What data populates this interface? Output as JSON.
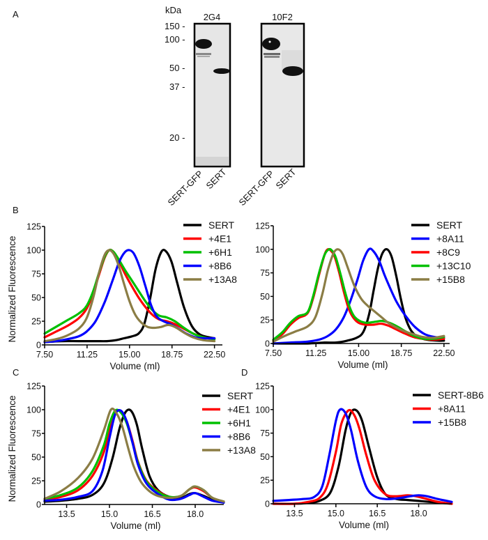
{
  "figure": {
    "panel_letters": [
      "A",
      "B",
      "C",
      "D"
    ]
  },
  "blot": {
    "unit_label": "kDa",
    "markers": [
      "150 -",
      "100 -",
      "50 -",
      "37 -",
      "20 -"
    ],
    "marker_values": [
      150,
      100,
      50,
      37,
      20
    ],
    "blots": [
      {
        "title": "2G4",
        "lanes": [
          "SERT-GFP",
          "SERT"
        ]
      },
      {
        "title": "10F2",
        "lanes": [
          "SERT-GFP",
          "SERT"
        ]
      }
    ]
  },
  "chart_data": [
    {
      "id": "B-left",
      "type": "line",
      "title": "",
      "xlabel": "Volume (ml)",
      "ylabel": "Normalized Fluorescence",
      "xlim": [
        7.5,
        23.2
      ],
      "ylim": [
        0,
        125
      ],
      "xticks": [
        7.5,
        11.25,
        15.0,
        18.75,
        22.5
      ],
      "xtick_labels": [
        "7.50",
        "11.25",
        "15.00",
        "18.75",
        "22.50"
      ],
      "yticks": [
        0,
        25,
        50,
        75,
        100,
        125
      ],
      "ytick_labels": [
        "0",
        "25",
        "50",
        "75",
        "100",
        "125"
      ],
      "legend_position": "top-right",
      "grid": false,
      "series": [
        {
          "name": "SERT",
          "color": "#000000",
          "x": [
            7.5,
            9,
            10.5,
            12,
            13,
            13.8,
            14.5,
            15.2,
            15.8,
            16.3,
            16.8,
            17.3,
            17.8,
            18.2,
            18.7,
            19.2,
            19.8,
            20.5,
            21.2,
            22,
            22.5
          ],
          "y": [
            3,
            4,
            4,
            4,
            4,
            5,
            7,
            9,
            12,
            22,
            48,
            80,
            98,
            99,
            88,
            66,
            40,
            20,
            11,
            8,
            7
          ]
        },
        {
          "name": "+4E1",
          "color": "#ff0000",
          "x": [
            7.5,
            8.5,
            9.5,
            10.5,
            11.2,
            11.8,
            12.3,
            12.8,
            13.2,
            13.6,
            14.0,
            14.6,
            15.2,
            15.8,
            16.4,
            17.0,
            17.6,
            18.3,
            19.0,
            19.8,
            20.6,
            21.5,
            22.5
          ],
          "y": [
            8,
            14,
            20,
            28,
            38,
            55,
            74,
            92,
            100,
            98,
            90,
            75,
            62,
            50,
            40,
            32,
            27,
            25,
            22,
            17,
            12,
            8,
            6
          ]
        },
        {
          "name": "+6H1",
          "color": "#00c000",
          "x": [
            7.5,
            8.5,
            9.5,
            10.5,
            11.2,
            11.8,
            12.3,
            12.8,
            13.2,
            13.6,
            14.0,
            14.6,
            15.2,
            15.8,
            16.4,
            17.0,
            17.6,
            18.3,
            19.0,
            19.8,
            20.6,
            21.5,
            22.5
          ],
          "y": [
            12,
            19,
            26,
            33,
            41,
            57,
            76,
            93,
            100,
            98,
            91,
            79,
            68,
            57,
            46,
            37,
            31,
            29,
            25,
            18,
            12,
            8,
            6
          ]
        },
        {
          "name": "+8B6",
          "color": "#0000ff",
          "x": [
            7.5,
            8.5,
            9.5,
            10.5,
            11.2,
            12.0,
            12.8,
            13.5,
            14.1,
            14.6,
            15.0,
            15.4,
            15.9,
            16.4,
            16.9,
            17.4,
            18.0,
            18.6,
            19.2,
            20.0,
            20.8,
            21.6,
            22.5
          ],
          "y": [
            3,
            4,
            6,
            9,
            14,
            25,
            45,
            68,
            88,
            98,
            100,
            96,
            82,
            62,
            42,
            30,
            25,
            22,
            18,
            12,
            8,
            7,
            7
          ]
        },
        {
          "name": "+13A8",
          "color": "#8b7d45",
          "x": [
            7.5,
            8.5,
            9.5,
            10.5,
            11.2,
            11.8,
            12.3,
            12.8,
            13.2,
            13.6,
            14.0,
            14.5,
            15.0,
            15.5,
            16.0,
            16.6,
            17.2,
            17.8,
            18.4,
            19.0,
            19.8,
            20.6,
            21.5,
            22.5
          ],
          "y": [
            4,
            6,
            10,
            17,
            28,
            50,
            76,
            95,
            100,
            96,
            85,
            65,
            46,
            32,
            24,
            19,
            18,
            19,
            21,
            19,
            13,
            8,
            5,
            4
          ]
        }
      ]
    },
    {
      "id": "B-right",
      "type": "line",
      "title": "",
      "xlabel": "Volume (ml)",
      "ylabel": "",
      "xlim": [
        7.5,
        23.0
      ],
      "ylim": [
        0,
        125
      ],
      "xticks": [
        7.5,
        11.25,
        15.0,
        18.75,
        22.5
      ],
      "xtick_labels": [
        "7.50",
        "11.25",
        "15.00",
        "18.75",
        "22.50"
      ],
      "yticks": [
        0,
        25,
        50,
        75,
        100,
        125
      ],
      "ytick_labels": [
        "0",
        "25",
        "50",
        "75",
        "100",
        "125"
      ],
      "legend_position": "top-right",
      "grid": false,
      "series": [
        {
          "name": "SERT",
          "color": "#000000",
          "x": [
            7.5,
            9,
            10.5,
            12,
            13,
            14,
            14.8,
            15.4,
            15.9,
            16.3,
            16.7,
            17.1,
            17.5,
            17.9,
            18.3,
            18.7,
            19.1,
            19.6,
            20.2,
            21,
            22,
            22.5
          ],
          "y": [
            0,
            0,
            0,
            1,
            1,
            3,
            6,
            12,
            30,
            55,
            80,
            96,
            100,
            92,
            72,
            48,
            28,
            14,
            7,
            4,
            3,
            3
          ]
        },
        {
          "name": "+8A11",
          "color": "#0000ff",
          "x": [
            7.5,
            9,
            10.5,
            11.5,
            12.3,
            13.0,
            13.7,
            14.3,
            14.9,
            15.4,
            15.9,
            16.3,
            16.8,
            17.3,
            17.8,
            18.3,
            18.8,
            19.4,
            20.0,
            20.8,
            21.6,
            22.5
          ],
          "y": [
            0,
            1,
            2,
            4,
            8,
            15,
            28,
            46,
            68,
            88,
            100,
            98,
            88,
            72,
            58,
            45,
            35,
            25,
            17,
            10,
            7,
            6
          ]
        },
        {
          "name": "+8C9",
          "color": "#ff0000",
          "x": [
            7.5,
            8.3,
            9.0,
            9.7,
            10.5,
            11.0,
            11.5,
            12.0,
            12.3,
            12.6,
            12.9,
            13.3,
            13.7,
            14.1,
            14.5,
            15.0,
            15.6,
            16.3,
            17.0,
            17.6,
            18.3,
            19.0,
            19.8,
            20.6,
            21.5,
            22.5
          ],
          "y": [
            3,
            10,
            20,
            27,
            32,
            48,
            72,
            94,
            100,
            98,
            92,
            75,
            55,
            38,
            28,
            22,
            20,
            20,
            21,
            19,
            15,
            11,
            7,
            5,
            4,
            5
          ]
        },
        {
          "name": "+13C10",
          "color": "#00c000",
          "x": [
            7.5,
            8.3,
            9.0,
            9.7,
            10.5,
            11.0,
            11.5,
            12.0,
            12.4,
            12.7,
            13.0,
            13.4,
            13.8,
            14.2,
            14.6,
            15.1,
            15.7,
            16.4,
            17.1,
            17.7,
            18.4,
            19.1,
            19.9,
            20.7,
            21.6,
            22.5
          ],
          "y": [
            4,
            12,
            22,
            29,
            33,
            50,
            74,
            94,
            100,
            98,
            91,
            74,
            55,
            39,
            29,
            24,
            22,
            23,
            24,
            22,
            18,
            13,
            8,
            5,
            5,
            7
          ]
        },
        {
          "name": "+15B8",
          "color": "#8b7d45",
          "x": [
            7.5,
            8.5,
            9.5,
            10.5,
            11.2,
            11.8,
            12.3,
            12.8,
            13.2,
            13.6,
            14.0,
            14.6,
            15.2,
            15.8,
            16.4,
            17.0,
            17.6,
            18.3,
            19.0,
            19.8,
            20.6,
            21.5,
            22.5
          ],
          "y": [
            2,
            8,
            13,
            18,
            28,
            52,
            78,
            96,
            100,
            95,
            82,
            62,
            48,
            40,
            34,
            28,
            22,
            17,
            13,
            10,
            7,
            6,
            8
          ]
        }
      ]
    },
    {
      "id": "C",
      "type": "line",
      "title": "",
      "xlabel": "Volume (ml)",
      "ylabel": "Normalized Fluorescence",
      "xlim": [
        12.73,
        19.0
      ],
      "ylim": [
        0,
        125
      ],
      "xticks": [
        13.5,
        15.0,
        16.5,
        18.0
      ],
      "xtick_labels": [
        "13.5",
        "15.0",
        "16.5",
        "18.0"
      ],
      "yticks": [
        0,
        25,
        50,
        75,
        100,
        125
      ],
      "ytick_labels": [
        "0",
        "25",
        "50",
        "75",
        "100",
        "125"
      ],
      "legend_position": "top-right",
      "grid": false,
      "series": [
        {
          "name": "SERT",
          "color": "#000000",
          "x": [
            12.73,
            13.3,
            13.9,
            14.4,
            14.8,
            15.1,
            15.35,
            15.55,
            15.75,
            15.95,
            16.15,
            16.4,
            16.7,
            17.1,
            17.5,
            17.8,
            18.0,
            18.3,
            18.6,
            19.0
          ],
          "y": [
            3,
            4,
            6,
            10,
            22,
            48,
            80,
            97,
            99,
            85,
            58,
            30,
            15,
            8,
            7,
            11,
            12,
            9,
            5,
            2
          ]
        },
        {
          "name": "+4E1",
          "color": "#ff0000",
          "x": [
            12.73,
            13.3,
            13.9,
            14.4,
            14.8,
            15.0,
            15.2,
            15.4,
            15.6,
            15.8,
            16.0,
            16.3,
            16.7,
            17.1,
            17.5,
            17.8,
            18.0,
            18.3,
            18.6,
            19.0
          ],
          "y": [
            5,
            8,
            15,
            30,
            55,
            80,
            97,
            98,
            88,
            68,
            45,
            25,
            14,
            8,
            9,
            16,
            18,
            14,
            7,
            3
          ]
        },
        {
          "name": "+6H1",
          "color": "#00c000",
          "x": [
            12.73,
            13.3,
            13.9,
            14.4,
            14.8,
            15.0,
            15.2,
            15.4,
            15.6,
            15.8,
            16.0,
            16.3,
            16.7,
            17.1,
            17.5,
            17.8,
            18.0,
            18.3,
            18.6,
            19.0
          ],
          "y": [
            6,
            10,
            18,
            35,
            62,
            85,
            99,
            97,
            86,
            66,
            44,
            24,
            13,
            8,
            9,
            16,
            19,
            15,
            7,
            3
          ]
        },
        {
          "name": "+8B6",
          "color": "#0000ff",
          "x": [
            12.73,
            13.3,
            13.9,
            14.4,
            14.75,
            15.0,
            15.2,
            15.4,
            15.6,
            15.8,
            16.0,
            16.3,
            16.7,
            17.1,
            17.5,
            17.8,
            18.0,
            18.3,
            18.6,
            19.0
          ],
          "y": [
            4,
            5,
            8,
            14,
            35,
            70,
            95,
            99,
            88,
            66,
            42,
            22,
            11,
            5,
            6,
            10,
            12,
            8,
            4,
            2
          ]
        },
        {
          "name": "+13A8",
          "color": "#8b7d45",
          "x": [
            12.73,
            13.3,
            13.9,
            14.4,
            14.8,
            15.05,
            15.25,
            15.45,
            15.65,
            15.85,
            16.1,
            16.4,
            16.7,
            17.1,
            17.5,
            17.8,
            18.0,
            18.3,
            18.6,
            19.0
          ],
          "y": [
            6,
            14,
            28,
            48,
            78,
            100,
            96,
            82,
            60,
            40,
            24,
            14,
            9,
            7,
            9,
            16,
            19,
            15,
            7,
            3
          ]
        }
      ]
    },
    {
      "id": "D",
      "type": "line",
      "title": "",
      "xlabel": "Volume (ml)",
      "ylabel": "",
      "xlim": [
        12.73,
        19.2
      ],
      "ylim": [
        0,
        125
      ],
      "xticks": [
        13.5,
        15.0,
        16.5,
        18.0
      ],
      "xtick_labels": [
        "13.5",
        "15.0",
        "16.5",
        "18.0"
      ],
      "yticks": [
        0,
        25,
        50,
        75,
        100,
        125
      ],
      "ytick_labels": [
        "0",
        "25",
        "50",
        "75",
        "100",
        "125"
      ],
      "legend_position": "top-right",
      "grid": false,
      "series": [
        {
          "name": "SERT-8B6",
          "color": "#000000",
          "x": [
            12.73,
            13.5,
            14.0,
            14.4,
            14.8,
            15.1,
            15.35,
            15.55,
            15.75,
            15.95,
            16.2,
            16.5,
            16.8,
            17.2,
            17.6,
            18.0,
            18.4,
            18.8,
            19.2
          ],
          "y": [
            0,
            0,
            1,
            3,
            12,
            40,
            78,
            97,
            99,
            88,
            60,
            28,
            10,
            5,
            4,
            3,
            2,
            1,
            0
          ]
        },
        {
          "name": "+8A11",
          "color": "#ff0000",
          "x": [
            12.73,
            13.5,
            14.0,
            14.4,
            14.7,
            15.0,
            15.2,
            15.45,
            15.65,
            15.85,
            16.1,
            16.4,
            16.8,
            17.2,
            17.6,
            17.9,
            18.3,
            18.7,
            19.2
          ],
          "y": [
            0,
            0,
            2,
            6,
            20,
            55,
            85,
            99,
            95,
            80,
            52,
            25,
            10,
            8,
            9,
            8,
            5,
            2,
            0
          ]
        },
        {
          "name": "+15B8",
          "color": "#0000ff",
          "x": [
            12.73,
            13.3,
            13.8,
            14.2,
            14.5,
            14.75,
            15.0,
            15.15,
            15.35,
            15.55,
            15.8,
            16.1,
            16.4,
            16.8,
            17.3,
            17.7,
            18.0,
            18.3,
            18.7,
            19.2
          ],
          "y": [
            3,
            4,
            5,
            7,
            18,
            50,
            88,
            100,
            96,
            78,
            45,
            18,
            8,
            5,
            6,
            8,
            9,
            8,
            5,
            2
          ]
        }
      ]
    }
  ]
}
